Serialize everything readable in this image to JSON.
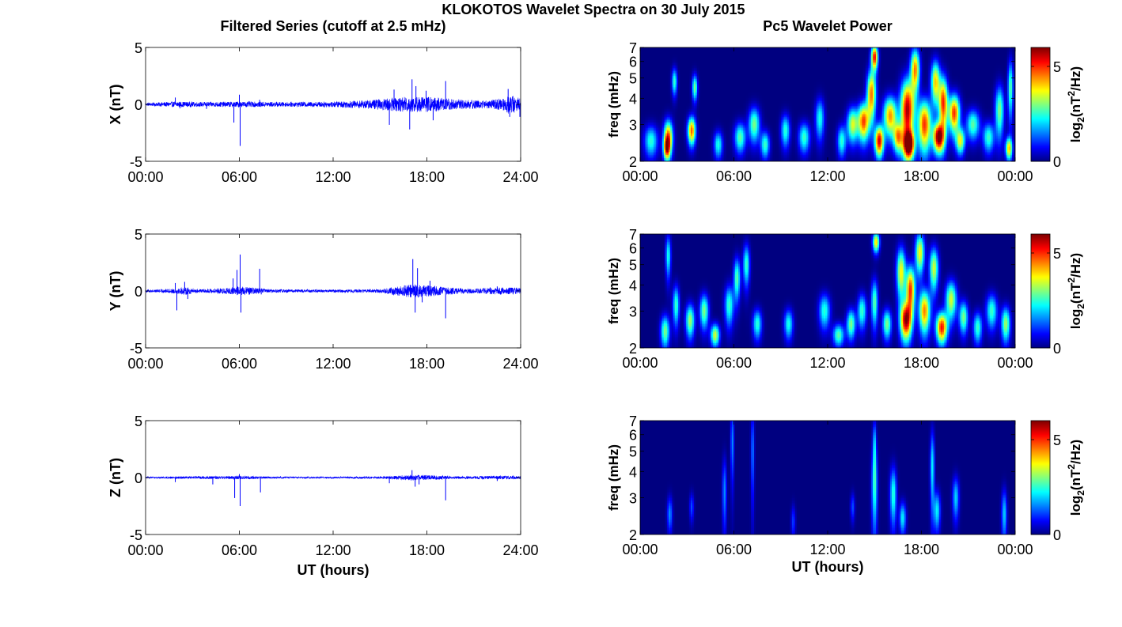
{
  "title": "KLOKOTOS Wavelet Spectra on 30 July 2015",
  "left_column_title": "Filtered Series (cutoff at 2.5 mHz)",
  "right_column_title": "Pc5 Wavelet Power",
  "colors": {
    "trace": "#0000ff",
    "axes": "#000000",
    "background": "#ffffff"
  },
  "chart_data": [
    {
      "type": "line",
      "ylabel": "X (nT)",
      "xlabel": "",
      "xlim": [
        0,
        24
      ],
      "ylim": [
        -5,
        5
      ],
      "x_ticks": [
        "00:00",
        "06:00",
        "12:00",
        "18:00",
        "24:00"
      ],
      "y_ticks": [
        "-5",
        "0",
        "5"
      ],
      "background_amplitude": [
        [
          0,
          0.12
        ],
        [
          2,
          0.25
        ],
        [
          3.5,
          0.2
        ],
        [
          6,
          0.25
        ],
        [
          9,
          0.2
        ],
        [
          12,
          0.25
        ],
        [
          14,
          0.35
        ],
        [
          15.5,
          0.55
        ],
        [
          17,
          0.7
        ],
        [
          18.5,
          0.65
        ],
        [
          20,
          0.45
        ],
        [
          22,
          0.35
        ],
        [
          23,
          0.6
        ],
        [
          23.3,
          0.9
        ],
        [
          24,
          0.5
        ]
      ],
      "spikes": [
        [
          1.9,
          0.6
        ],
        [
          2.2,
          -0.35
        ],
        [
          3.9,
          -0.4
        ],
        [
          5.65,
          -1.6
        ],
        [
          6.05,
          -3.65
        ],
        [
          6.0,
          0.85
        ],
        [
          7.3,
          0.4
        ],
        [
          15.6,
          -1.8
        ],
        [
          15.9,
          1.3
        ],
        [
          16.9,
          -2.2
        ],
        [
          17.05,
          2.2
        ],
        [
          17.3,
          1.6
        ],
        [
          17.95,
          1.2
        ],
        [
          18.4,
          -1.4
        ],
        [
          19.2,
          2.05
        ],
        [
          23.2,
          1.35
        ],
        [
          23.3,
          -1.1
        ],
        [
          23.55,
          -0.6
        ],
        [
          23.95,
          -1.1
        ]
      ]
    },
    {
      "type": "line",
      "ylabel": "Y (nT)",
      "xlabel": "",
      "xlim": [
        0,
        24
      ],
      "ylim": [
        -5,
        5
      ],
      "x_ticks": [
        "00:00",
        "06:00",
        "12:00",
        "18:00",
        "24:00"
      ],
      "y_ticks": [
        "-5",
        "0",
        "5"
      ],
      "background_amplitude": [
        [
          0,
          0.1
        ],
        [
          1.8,
          0.2
        ],
        [
          2.5,
          0.35
        ],
        [
          3.5,
          0.15
        ],
        [
          5,
          0.25
        ],
        [
          6,
          0.4
        ],
        [
          8,
          0.15
        ],
        [
          12,
          0.12
        ],
        [
          15,
          0.15
        ],
        [
          17,
          0.6
        ],
        [
          18,
          0.55
        ],
        [
          19,
          0.35
        ],
        [
          21,
          0.2
        ],
        [
          22,
          0.3
        ],
        [
          24,
          0.3
        ]
      ],
      "spikes": [
        [
          1.9,
          0.7
        ],
        [
          2.0,
          -1.7
        ],
        [
          2.5,
          0.8
        ],
        [
          2.7,
          -0.7
        ],
        [
          5.6,
          1.1
        ],
        [
          5.85,
          1.85
        ],
        [
          6.05,
          3.2
        ],
        [
          6.1,
          -1.9
        ],
        [
          7.3,
          1.95
        ],
        [
          7.4,
          -0.3
        ],
        [
          17.1,
          2.8
        ],
        [
          17.25,
          -1.9
        ],
        [
          17.4,
          2.0
        ],
        [
          17.7,
          -1.0
        ],
        [
          18.2,
          0.9
        ],
        [
          19.2,
          -2.4
        ],
        [
          22.5,
          0.4
        ]
      ]
    },
    {
      "type": "line",
      "ylabel": "Z (nT)",
      "xlabel": "UT (hours)",
      "xlim": [
        0,
        24
      ],
      "ylim": [
        -5,
        5
      ],
      "x_ticks": [
        "00:00",
        "06:00",
        "12:00",
        "18:00",
        "24:00"
      ],
      "y_ticks": [
        "-5",
        "0",
        "5"
      ],
      "background_amplitude": [
        [
          0,
          0.06
        ],
        [
          2,
          0.1
        ],
        [
          4,
          0.12
        ],
        [
          6,
          0.15
        ],
        [
          8,
          0.08
        ],
        [
          12,
          0.07
        ],
        [
          15,
          0.1
        ],
        [
          17,
          0.25
        ],
        [
          18.5,
          0.2
        ],
        [
          20,
          0.1
        ],
        [
          23,
          0.18
        ],
        [
          24,
          0.12
        ]
      ],
      "spikes": [
        [
          1.9,
          -0.4
        ],
        [
          4.3,
          -0.6
        ],
        [
          5.7,
          -1.8
        ],
        [
          6.05,
          -2.5
        ],
        [
          6.0,
          0.3
        ],
        [
          7.35,
          -1.3
        ],
        [
          15.6,
          -0.5
        ],
        [
          17.05,
          0.65
        ],
        [
          17.25,
          -0.8
        ],
        [
          17.5,
          -0.6
        ],
        [
          19.2,
          -2.0
        ],
        [
          22.5,
          -0.3
        ]
      ]
    },
    {
      "type": "heatmap",
      "ylabel": "freq (mHz)",
      "xlabel": "",
      "xlim": [
        0,
        24
      ],
      "ylim": [
        2,
        7
      ],
      "y_scale": "log",
      "x_ticks": [
        "00:00",
        "06:00",
        "12:00",
        "18:00",
        "00:00"
      ],
      "y_ticks": [
        "2",
        "3",
        "4",
        "5",
        "6",
        "7"
      ],
      "colorbar": {
        "label_base": "log",
        "label_sub": "2",
        "label_mid": "(nT",
        "label_sup": "2",
        "label_end": "/Hz)",
        "range": [
          0,
          6
        ],
        "ticks": [
          "0",
          "5"
        ]
      },
      "blobs": [
        [
          1.8,
          2.6,
          0.2,
          0.35,
          4.8
        ],
        [
          1.7,
          2.3,
          0.15,
          0.2,
          3.5
        ],
        [
          2.2,
          4.8,
          0.12,
          0.5,
          2.6
        ],
        [
          3.3,
          2.8,
          0.18,
          0.3,
          4.7
        ],
        [
          3.5,
          4.5,
          0.12,
          0.45,
          3.0
        ],
        [
          0.7,
          2.5,
          0.3,
          0.3,
          2.5
        ],
        [
          5.0,
          2.4,
          0.2,
          0.25,
          2.4
        ],
        [
          6.4,
          2.6,
          0.25,
          0.3,
          2.8
        ],
        [
          7.3,
          3.0,
          0.25,
          0.4,
          3.0
        ],
        [
          8.0,
          2.4,
          0.2,
          0.25,
          2.6
        ],
        [
          9.3,
          2.8,
          0.2,
          0.35,
          2.5
        ],
        [
          10.5,
          2.6,
          0.25,
          0.3,
          2.6
        ],
        [
          11.5,
          3.2,
          0.2,
          0.5,
          2.4
        ],
        [
          12.9,
          2.5,
          0.2,
          0.3,
          2.5
        ],
        [
          13.6,
          3.0,
          0.25,
          0.4,
          3.5
        ],
        [
          14.3,
          3.1,
          0.25,
          0.45,
          4.8
        ],
        [
          14.8,
          4.2,
          0.2,
          0.8,
          4.6
        ],
        [
          15.0,
          6.3,
          0.15,
          0.6,
          5.3
        ],
        [
          15.3,
          2.5,
          0.2,
          0.3,
          5.5
        ],
        [
          16.0,
          3.3,
          0.3,
          0.5,
          4.4
        ],
        [
          16.5,
          2.6,
          0.2,
          0.3,
          3.8
        ],
        [
          17.1,
          3.5,
          0.3,
          0.9,
          5.8
        ],
        [
          17.2,
          2.4,
          0.25,
          0.25,
          5.5
        ],
        [
          17.6,
          5.5,
          0.2,
          0.9,
          4.5
        ],
        [
          18.2,
          3.0,
          0.3,
          0.6,
          5.0
        ],
        [
          18.9,
          4.8,
          0.2,
          0.8,
          4.0
        ],
        [
          19.1,
          2.6,
          0.25,
          0.3,
          5.9
        ],
        [
          19.4,
          3.8,
          0.2,
          0.8,
          5.0
        ],
        [
          20.1,
          3.4,
          0.25,
          0.5,
          5.0
        ],
        [
          20.5,
          2.5,
          0.2,
          0.25,
          3.5
        ],
        [
          21.3,
          3.0,
          0.3,
          0.35,
          2.8
        ],
        [
          22.3,
          2.6,
          0.25,
          0.3,
          2.6
        ],
        [
          23.0,
          3.5,
          0.2,
          0.7,
          3.0
        ],
        [
          23.6,
          2.3,
          0.15,
          0.2,
          4.0
        ],
        [
          23.7,
          4.5,
          0.12,
          1.0,
          2.8
        ]
      ]
    },
    {
      "type": "heatmap",
      "ylabel": "freq (mHz)",
      "xlabel": "",
      "xlim": [
        0,
        24
      ],
      "ylim": [
        2,
        7
      ],
      "y_scale": "log",
      "x_ticks": [
        "00:00",
        "06:00",
        "12:00",
        "18:00",
        "00:00"
      ],
      "y_ticks": [
        "2",
        "3",
        "4",
        "5",
        "6",
        "7"
      ],
      "colorbar": {
        "label_base": "log",
        "label_sub": "2",
        "label_mid": "(nT",
        "label_sup": "2",
        "label_end": "/Hz)",
        "range": [
          0,
          6
        ],
        "ticks": [
          "0",
          "5"
        ]
      },
      "blobs": [
        [
          1.6,
          2.4,
          0.2,
          0.3,
          3.0
        ],
        [
          2.3,
          3.2,
          0.15,
          0.5,
          2.6
        ],
        [
          1.8,
          5.5,
          0.12,
          0.9,
          2.4
        ],
        [
          3.2,
          2.7,
          0.2,
          0.35,
          3.2
        ],
        [
          4.1,
          3.0,
          0.2,
          0.4,
          3.0
        ],
        [
          4.8,
          2.3,
          0.2,
          0.2,
          3.5
        ],
        [
          5.7,
          3.2,
          0.2,
          0.5,
          2.6
        ],
        [
          6.2,
          4.3,
          0.15,
          0.7,
          2.8
        ],
        [
          6.8,
          5.0,
          0.15,
          0.8,
          2.6
        ],
        [
          7.5,
          2.6,
          0.2,
          0.3,
          2.5
        ],
        [
          9.5,
          2.6,
          0.2,
          0.3,
          2.4
        ],
        [
          11.8,
          3.0,
          0.25,
          0.4,
          2.5
        ],
        [
          12.7,
          2.3,
          0.25,
          0.2,
          2.8
        ],
        [
          13.5,
          2.6,
          0.2,
          0.3,
          3.0
        ],
        [
          14.2,
          3.0,
          0.2,
          0.4,
          2.6
        ],
        [
          15.0,
          3.3,
          0.15,
          0.6,
          2.8
        ],
        [
          15.1,
          6.4,
          0.15,
          0.5,
          4.0
        ],
        [
          15.8,
          2.6,
          0.2,
          0.3,
          3.0
        ],
        [
          16.7,
          4.6,
          0.2,
          0.9,
          3.8
        ],
        [
          17.0,
          2.7,
          0.25,
          0.4,
          5.5
        ],
        [
          17.3,
          3.8,
          0.2,
          0.7,
          5.0
        ],
        [
          17.9,
          5.7,
          0.2,
          0.9,
          3.8
        ],
        [
          18.2,
          3.0,
          0.25,
          0.5,
          4.5
        ],
        [
          18.8,
          4.8,
          0.2,
          0.8,
          3.5
        ],
        [
          19.3,
          2.5,
          0.25,
          0.3,
          5.2
        ],
        [
          19.9,
          3.4,
          0.25,
          0.5,
          3.5
        ],
        [
          20.7,
          2.8,
          0.2,
          0.35,
          3.0
        ],
        [
          21.6,
          2.5,
          0.2,
          0.3,
          2.6
        ],
        [
          22.5,
          3.0,
          0.25,
          0.4,
          2.6
        ],
        [
          23.4,
          2.6,
          0.2,
          0.35,
          3.2
        ]
      ]
    },
    {
      "type": "heatmap",
      "ylabel": "freq (mHz)",
      "xlabel": "UT (hours)",
      "xlim": [
        0,
        24
      ],
      "ylim": [
        2,
        7
      ],
      "y_scale": "log",
      "x_ticks": [
        "00:00",
        "06:00",
        "12:00",
        "18:00",
        "00:00"
      ],
      "y_ticks": [
        "2",
        "3",
        "4",
        "5",
        "6",
        "7"
      ],
      "colorbar": {
        "label_base": "log",
        "label_sub": "2",
        "label_mid": "(nT",
        "label_sup": "2",
        "label_end": "/Hz)",
        "range": [
          0,
          6
        ],
        "ticks": [
          "0",
          "5"
        ]
      },
      "blobs": [
        [
          1.9,
          2.5,
          0.12,
          0.35,
          1.6
        ],
        [
          3.3,
          2.7,
          0.1,
          0.3,
          1.2
        ],
        [
          5.4,
          3.2,
          0.1,
          0.9,
          1.6
        ],
        [
          5.9,
          5.5,
          0.08,
          1.6,
          1.6
        ],
        [
          7.2,
          5.0,
          0.08,
          1.8,
          1.5
        ],
        [
          9.8,
          2.3,
          0.1,
          0.3,
          1.1
        ],
        [
          13.6,
          2.7,
          0.1,
          0.3,
          1.2
        ],
        [
          15.0,
          3.4,
          0.13,
          1.1,
          2.5
        ],
        [
          15.0,
          5.5,
          0.08,
          1.0,
          1.8
        ],
        [
          16.2,
          3.1,
          0.15,
          0.7,
          2.5
        ],
        [
          16.8,
          2.4,
          0.15,
          0.3,
          2.2
        ],
        [
          18.7,
          4.2,
          0.1,
          1.3,
          2.2
        ],
        [
          19.0,
          2.6,
          0.15,
          0.4,
          2.2
        ],
        [
          20.2,
          3.0,
          0.15,
          0.5,
          2.0
        ],
        [
          23.3,
          2.5,
          0.12,
          0.5,
          2.0
        ]
      ]
    }
  ]
}
